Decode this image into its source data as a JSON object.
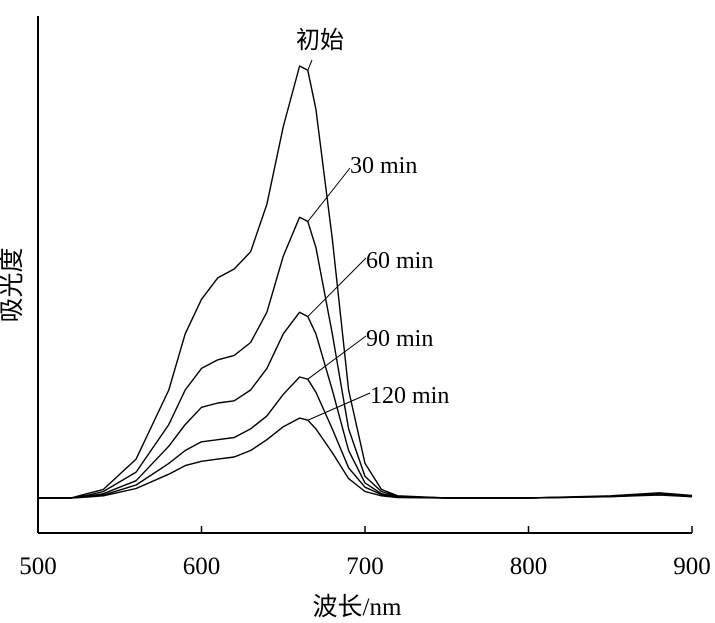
{
  "chart_data": {
    "type": "line",
    "title": "",
    "xlabel": "波长/nm",
    "ylabel": "吸光度",
    "xlim": [
      500,
      900
    ],
    "ylim": [
      0,
      1
    ],
    "x_ticks": [
      500,
      600,
      700,
      800,
      900
    ],
    "y_ticks_shown": false,
    "grid": false,
    "legend": "none",
    "line_color": "#000000",
    "series": [
      {
        "name": "初始",
        "x": [
          500,
          520,
          530,
          540,
          560,
          580,
          590,
          600,
          610,
          620,
          630,
          640,
          650,
          660,
          665,
          670,
          680,
          690,
          700,
          710,
          720,
          750,
          800,
          850,
          880,
          900
        ],
        "y": [
          0.0,
          0.0,
          0.01,
          0.02,
          0.09,
          0.25,
          0.38,
          0.46,
          0.51,
          0.53,
          0.57,
          0.68,
          0.86,
          1.0,
          0.99,
          0.9,
          0.6,
          0.25,
          0.08,
          0.02,
          0.005,
          0.0,
          0.0,
          0.005,
          0.012,
          0.006
        ]
      },
      {
        "name": "30 min",
        "x": [
          500,
          520,
          530,
          540,
          560,
          580,
          590,
          600,
          610,
          620,
          630,
          640,
          650,
          660,
          665,
          670,
          680,
          690,
          700,
          710,
          720,
          750,
          800,
          850,
          880,
          900
        ],
        "y": [
          0.0,
          0.0,
          0.006,
          0.015,
          0.06,
          0.17,
          0.25,
          0.3,
          0.32,
          0.33,
          0.36,
          0.43,
          0.56,
          0.65,
          0.64,
          0.58,
          0.38,
          0.16,
          0.05,
          0.015,
          0.004,
          0.0,
          0.0,
          0.004,
          0.01,
          0.005
        ]
      },
      {
        "name": "60 min",
        "x": [
          500,
          520,
          530,
          540,
          560,
          580,
          590,
          600,
          610,
          620,
          630,
          640,
          650,
          660,
          665,
          670,
          680,
          690,
          700,
          710,
          720,
          750,
          800,
          850,
          880,
          900
        ],
        "y": [
          0.0,
          0.0,
          0.004,
          0.01,
          0.04,
          0.12,
          0.17,
          0.21,
          0.22,
          0.225,
          0.25,
          0.3,
          0.38,
          0.43,
          0.42,
          0.38,
          0.25,
          0.11,
          0.035,
          0.01,
          0.003,
          0.0,
          0.0,
          0.004,
          0.009,
          0.004
        ]
      },
      {
        "name": "90 min",
        "x": [
          500,
          520,
          530,
          540,
          560,
          580,
          590,
          600,
          610,
          620,
          630,
          640,
          650,
          660,
          665,
          670,
          680,
          690,
          700,
          710,
          720,
          750,
          800,
          850,
          880,
          900
        ],
        "y": [
          0.0,
          0.0,
          0.003,
          0.007,
          0.03,
          0.08,
          0.11,
          0.13,
          0.135,
          0.14,
          0.16,
          0.19,
          0.24,
          0.28,
          0.275,
          0.245,
          0.16,
          0.07,
          0.025,
          0.008,
          0.002,
          0.0,
          0.0,
          0.003,
          0.008,
          0.003
        ]
      },
      {
        "name": "120 min",
        "x": [
          500,
          520,
          530,
          540,
          560,
          580,
          590,
          600,
          610,
          620,
          630,
          640,
          650,
          660,
          665,
          670,
          680,
          690,
          700,
          710,
          720,
          750,
          800,
          850,
          880,
          900
        ],
        "y": [
          0.0,
          0.0,
          0.002,
          0.005,
          0.022,
          0.055,
          0.075,
          0.085,
          0.09,
          0.095,
          0.11,
          0.135,
          0.165,
          0.185,
          0.18,
          0.16,
          0.105,
          0.045,
          0.015,
          0.005,
          0.001,
          0.0,
          0.0,
          0.003,
          0.007,
          0.003
        ]
      }
    ],
    "annotations": [
      {
        "text": "初始",
        "series": "初始",
        "at_x": 665
      },
      {
        "text": "30 min",
        "series": "30 min",
        "at_x": 665
      },
      {
        "text": "60 min",
        "series": "60 min",
        "at_x": 665
      },
      {
        "text": "90 min",
        "series": "90 min",
        "at_x": 665
      },
      {
        "text": "120 min",
        "series": "120 min",
        "at_x": 665
      }
    ]
  }
}
